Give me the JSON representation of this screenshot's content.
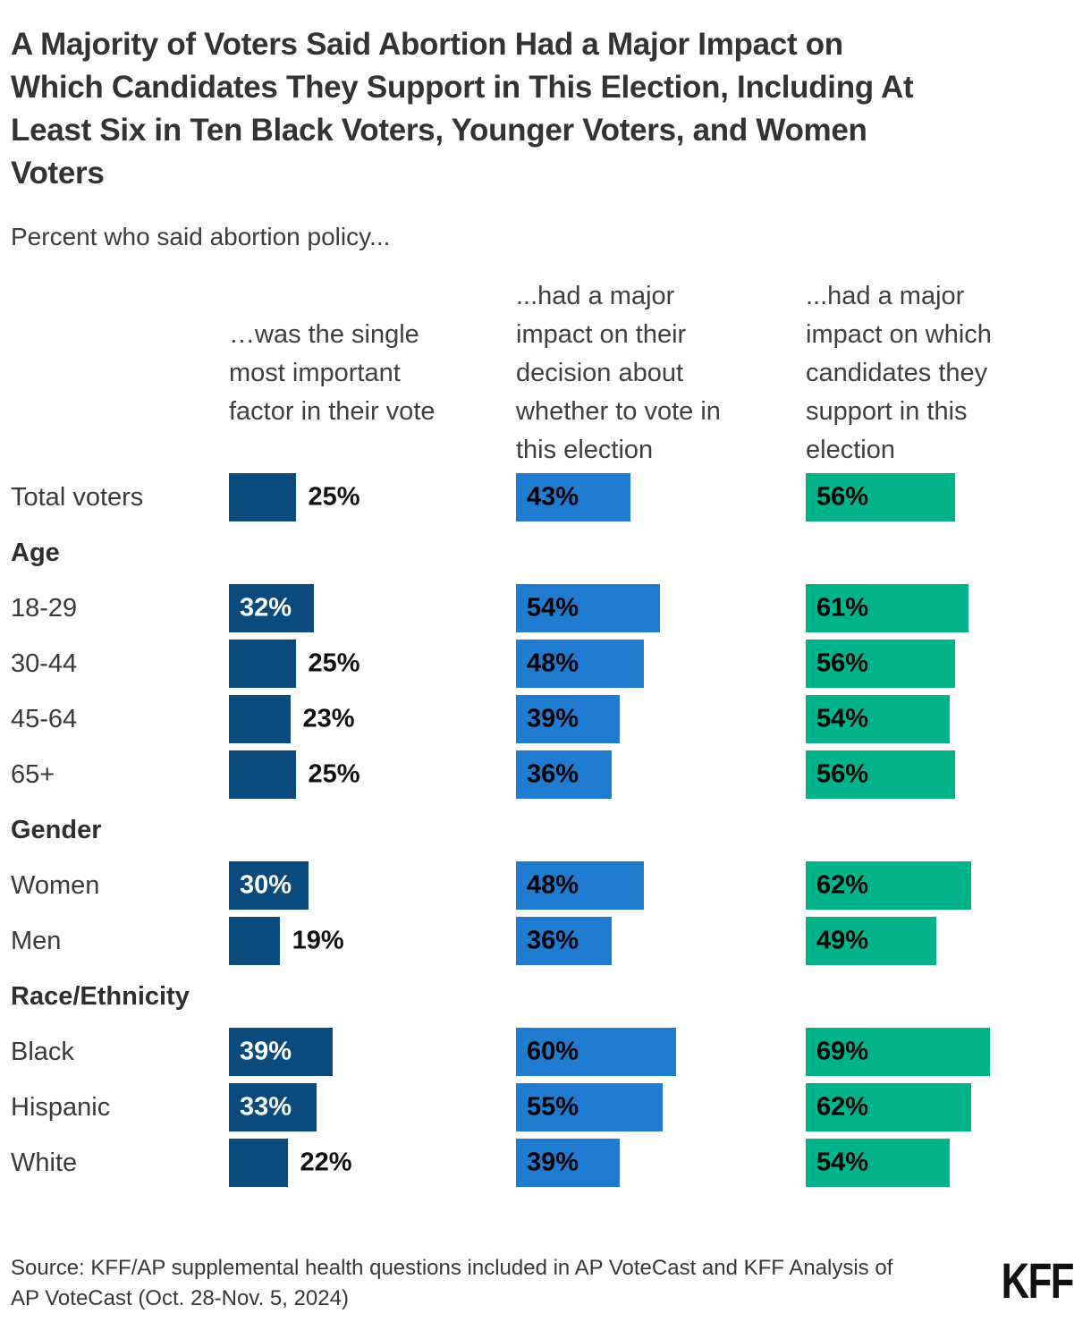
{
  "title": "A Majority of Voters Said Abortion Had a Major Impact on Which Candidates They Support in This Election, Including At Least Six in Ten Black Voters, Younger Voters, and Women Voters",
  "title_lines": [
    "A Majority of Voters Said Abortion Had a Major Impact on",
    "Which Candidates They Support in This Election, Including At",
    "Least Six in Ten Black Voters, Younger Voters, and Women",
    "Voters"
  ],
  "subtitle": "Percent who said abortion policy...",
  "columns": [
    {
      "color": "#0B4A7D",
      "header": "…was the single most important factor in their vote",
      "lines": [
        "…was the single",
        "most important",
        "factor in their vote"
      ]
    },
    {
      "color": "#1F7CD0",
      "header": "...had a major impact on their decision about whether to vote in this election",
      "lines": [
        "...had a major",
        "impact on their",
        "decision about",
        "whether to vote in",
        "this election"
      ]
    },
    {
      "color": "#00B389",
      "header": "...had a major impact on which candidates they support in this election",
      "lines": [
        "...had a major",
        "impact on which",
        "candidates they",
        "support in this",
        "election"
      ]
    }
  ],
  "chart_data": {
    "type": "bar",
    "orientation": "horizontal",
    "value_suffix": "%",
    "xlim": [
      0,
      100
    ],
    "grid": false,
    "legend": "column headers above each bar group",
    "title": "A Majority of Voters Said Abortion Had a Major Impact on Which Candidates They Support in This Election, Including At Least Six in Ten Black Voters, Younger Voters, and Women Voters",
    "subtitle": "Percent who said abortion policy...",
    "categories": [
      "Total voters",
      "18-29",
      "30-44",
      "45-64",
      "65+",
      "Women",
      "Men",
      "Black",
      "Hispanic",
      "White"
    ],
    "groups": [
      {
        "name": "Age",
        "categories": [
          "18-29",
          "30-44",
          "45-64",
          "65+"
        ]
      },
      {
        "name": "Gender",
        "categories": [
          "Women",
          "Men"
        ]
      },
      {
        "name": "Race/Ethnicity",
        "categories": [
          "Black",
          "Hispanic",
          "White"
        ]
      }
    ],
    "series": [
      {
        "name": "…was the single most important factor in their vote",
        "color": "#0B4A7D",
        "values": [
          25,
          32,
          25,
          23,
          25,
          30,
          19,
          39,
          33,
          22
        ]
      },
      {
        "name": "...had a major impact on their decision about whether to vote in this election",
        "color": "#1F7CD0",
        "values": [
          43,
          54,
          48,
          39,
          36,
          48,
          36,
          60,
          55,
          39
        ]
      },
      {
        "name": "...had a major impact on which candidates they support in this election",
        "color": "#00B389",
        "values": [
          56,
          61,
          56,
          54,
          56,
          62,
          49,
          69,
          62,
          54
        ]
      }
    ],
    "rows": [
      {
        "kind": "bars",
        "label": "Total voters",
        "values": [
          25,
          43,
          56
        ]
      },
      {
        "kind": "section",
        "label": "Age"
      },
      {
        "kind": "bars",
        "label": "18-29",
        "values": [
          32,
          54,
          61
        ]
      },
      {
        "kind": "bars",
        "label": "30-44",
        "values": [
          25,
          48,
          56
        ]
      },
      {
        "kind": "bars",
        "label": "45-64",
        "values": [
          23,
          39,
          54
        ]
      },
      {
        "kind": "bars",
        "label": "65+",
        "values": [
          25,
          36,
          56
        ]
      },
      {
        "kind": "section",
        "label": "Gender"
      },
      {
        "kind": "bars",
        "label": "Women",
        "values": [
          30,
          48,
          62
        ]
      },
      {
        "kind": "bars",
        "label": "Men",
        "values": [
          19,
          36,
          49
        ]
      },
      {
        "kind": "section",
        "label": "Race/Ethnicity"
      },
      {
        "kind": "bars",
        "label": "Black",
        "values": [
          39,
          60,
          69
        ]
      },
      {
        "kind": "bars",
        "label": "Hispanic",
        "values": [
          33,
          55,
          62
        ]
      },
      {
        "kind": "bars",
        "label": "White",
        "values": [
          22,
          39,
          54
        ]
      }
    ]
  },
  "source_lines": [
    "Source: KFF/AP supplemental health questions included in AP VoteCast and KFF Analysis of",
    "AP VoteCast (Oct. 28-Nov. 5, 2024)"
  ],
  "logo": "KFF",
  "colors": {
    "series_dark_blue": "#0B4A7D",
    "series_blue": "#1F7CD0",
    "series_green": "#00B389",
    "title_text": "#333333",
    "body_text": "#3A3A3A",
    "value_label_dark": "#000000",
    "value_label_light": "#FFFFFF"
  }
}
